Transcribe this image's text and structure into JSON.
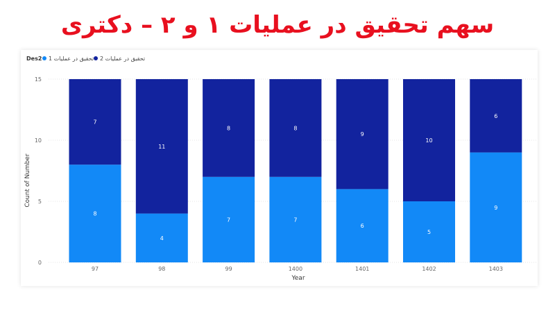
{
  "title": "سهم تحقیق در عملیات ۱ و ۲ – دکتری",
  "colors": {
    "title": "#e8101f",
    "series1": "#1289f7",
    "series2": "#12239e",
    "grid": "#e6e6e6"
  },
  "chart_data": {
    "type": "bar",
    "stacked": true,
    "legend": {
      "title": "Des2",
      "placement": "top-left"
    },
    "categories": [
      "97",
      "98",
      "99",
      "1400",
      "1401",
      "1402",
      "1403"
    ],
    "series": [
      {
        "name": "تحقیق در عملیات 1",
        "color": "#1289f7",
        "values": [
          8,
          4,
          7,
          7,
          6,
          5,
          9
        ]
      },
      {
        "name": "تحقیق در عملیات 2",
        "color": "#12239e",
        "values": [
          7,
          11,
          8,
          8,
          9,
          10,
          6
        ]
      }
    ],
    "xlabel": "Year",
    "ylabel": "Count of Number",
    "ylim": [
      0,
      15
    ],
    "yticks": [
      "0",
      "5",
      "10",
      "15"
    ],
    "grid": true
  }
}
